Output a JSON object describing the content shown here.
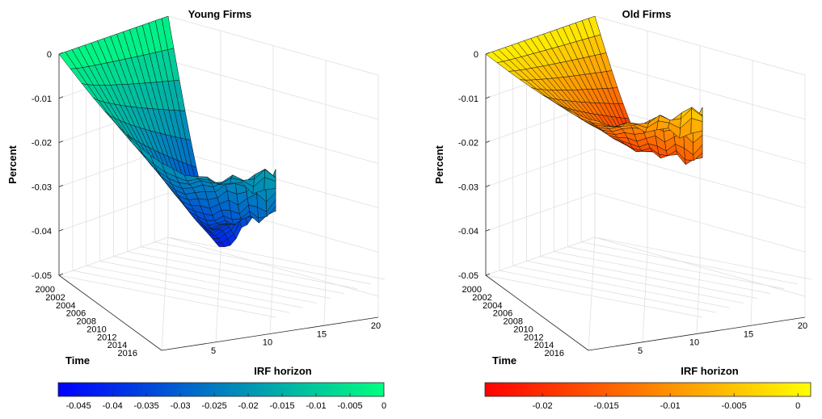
{
  "chart_data": [
    {
      "type": "surface",
      "title": "Young Firms",
      "xlabel": "IRF horizon",
      "ylabel": "Time",
      "zlabel": "Percent",
      "x_ticks": [
        "5",
        "10",
        "15",
        "20"
      ],
      "y_ticks": [
        "2000",
        "2002",
        "2004",
        "2006",
        "2008",
        "2010",
        "2012",
        "2014",
        "2016"
      ],
      "z_ticks": [
        "0",
        "-0.01",
        "-0.02",
        "-0.03",
        "-0.04",
        "-0.05"
      ],
      "xlim": [
        1,
        20
      ],
      "ylim": [
        2000,
        2017
      ],
      "zlim": [
        -0.05,
        0
      ],
      "colormap": "winter",
      "colormap_colors": [
        "#0000ff",
        "#00ff80"
      ],
      "colorbar_ticks": [
        "-0.045",
        "-0.04",
        "-0.035",
        "-0.03",
        "-0.025",
        "-0.02",
        "-0.015",
        "-0.01",
        "-0.005",
        "0"
      ],
      "colorbar_lim": [
        -0.048,
        0
      ],
      "trough_value": -0.048,
      "end_value_range": [
        -0.027,
        -0.017
      ],
      "grid": true
    },
    {
      "type": "surface",
      "title": "Old Firms",
      "xlabel": "IRF horizon",
      "ylabel": "Time",
      "zlabel": "Percent",
      "x_ticks": [
        "5",
        "10",
        "15",
        "20"
      ],
      "y_ticks": [
        "2000",
        "2002",
        "2004",
        "2006",
        "2008",
        "2010",
        "2012",
        "2014",
        "2016"
      ],
      "z_ticks": [
        "0",
        "-0.01",
        "-0.02",
        "-0.03",
        "-0.04",
        "-0.05"
      ],
      "xlim": [
        1,
        20
      ],
      "ylim": [
        2000,
        2017
      ],
      "zlim": [
        -0.05,
        0
      ],
      "colormap": "autumn",
      "colormap_colors": [
        "#ff0000",
        "#ffff00"
      ],
      "colorbar_ticks": [
        "-0.02",
        "-0.015",
        "-0.01",
        "-0.005",
        "0"
      ],
      "colorbar_lim": [
        -0.0245,
        0.001
      ],
      "trough_value": -0.0245,
      "end_value_range": [
        -0.015,
        -0.003
      ],
      "grid": true
    }
  ]
}
